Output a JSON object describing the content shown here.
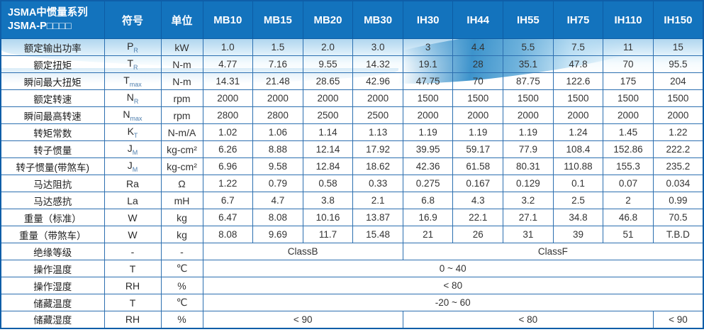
{
  "colors": {
    "header_bg": "#1373bd",
    "grid_border": "#2c6fb0",
    "outer_border": "#0f5ea8",
    "header_text": "#ffffff",
    "body_text": "#333333",
    "wave_light": "#acd4ee",
    "wave_dark": "#348ec9"
  },
  "table": {
    "header": {
      "series_title_line1": "JSMA中惯量系列",
      "series_title_line2": "JSMA-P□□□□",
      "symbol_col": "符号",
      "unit_col": "单位",
      "models": [
        "MB10",
        "MB15",
        "MB20",
        "MB30",
        "IH30",
        "IH44",
        "IH55",
        "IH75",
        "IH110",
        "IH150"
      ]
    },
    "rows": [
      {
        "label": "额定输出功率",
        "symbol": "P",
        "sub": "R",
        "unit": "kW",
        "cells": [
          "1.0",
          "1.5",
          "2.0",
          "3.0",
          "3",
          "4.4",
          "5.5",
          "7.5",
          "11",
          "15"
        ]
      },
      {
        "label": "额定扭矩",
        "symbol": "T",
        "sub": "R",
        "unit": "N-m",
        "cells": [
          "4.77",
          "7.16",
          "9.55",
          "14.32",
          "19.1",
          "28",
          "35.1",
          "47.8",
          "70",
          "95.5"
        ]
      },
      {
        "label": "瞬间最大扭矩",
        "symbol": "T",
        "sub": "max",
        "unit": "N-m",
        "cells": [
          "14.31",
          "21.48",
          "28.65",
          "42.96",
          "47.75",
          "70",
          "87.75",
          "122.6",
          "175",
          "204"
        ]
      },
      {
        "label": "额定转速",
        "symbol": "N",
        "sub": "R",
        "unit": "rpm",
        "cells": [
          "2000",
          "2000",
          "2000",
          "2000",
          "1500",
          "1500",
          "1500",
          "1500",
          "1500",
          "1500"
        ]
      },
      {
        "label": "瞬间最高转速",
        "symbol": "N",
        "sub": "max",
        "unit": "rpm",
        "cells": [
          "2800",
          "2800",
          "2500",
          "2500",
          "2000",
          "2000",
          "2000",
          "2000",
          "2000",
          "2000"
        ]
      },
      {
        "label": "转矩常数",
        "symbol": "K",
        "sub": "T",
        "unit": "N-m/A",
        "cells": [
          "1.02",
          "1.06",
          "1.14",
          "1.13",
          "1.19",
          "1.19",
          "1.19",
          "1.24",
          "1.45",
          "1.22"
        ]
      },
      {
        "label": "转子惯量",
        "symbol": "J",
        "sub": "M",
        "unit": "kg-cm²",
        "cells": [
          "6.26",
          "8.88",
          "12.14",
          "17.92",
          "39.95",
          "59.17",
          "77.9",
          "108.4",
          "152.86",
          "222.2"
        ]
      },
      {
        "label": "转子惯量(带煞车)",
        "symbol": "J",
        "sub": "M",
        "unit": "kg-cm²",
        "cells": [
          "6.96",
          "9.58",
          "12.84",
          "18.62",
          "42.36",
          "61.58",
          "80.31",
          "110.88",
          "155.3",
          "235.2"
        ]
      },
      {
        "label": "马达阻抗",
        "symbol": "Ra",
        "sub": "",
        "unit": "Ω",
        "cells": [
          "1.22",
          "0.79",
          "0.58",
          "0.33",
          "0.275",
          "0.167",
          "0.129",
          "0.1",
          "0.07",
          "0.034"
        ]
      },
      {
        "label": "马达感抗",
        "symbol": "La",
        "sub": "",
        "unit": "mH",
        "cells": [
          "6.7",
          "4.7",
          "3.8",
          "2.1",
          "6.8",
          "4.3",
          "3.2",
          "2.5",
          "2",
          "0.99"
        ]
      },
      {
        "label": "重量（标准）",
        "symbol": "W",
        "sub": "",
        "unit": "kg",
        "cells": [
          "6.47",
          "8.08",
          "10.16",
          "13.87",
          "16.9",
          "22.1",
          "27.1",
          "34.8",
          "46.8",
          "70.5"
        ]
      },
      {
        "label": "重量（带煞车）",
        "symbol": "W",
        "sub": "",
        "unit": "kg",
        "cells": [
          "8.08",
          "9.69",
          "11.7",
          "15.48",
          "21",
          "26",
          "31",
          "39",
          "51",
          "T.B.D"
        ]
      },
      {
        "label": "绝缘等级",
        "symbol": "-",
        "sub": "",
        "unit": "-",
        "cells": [
          {
            "t": "ClassB",
            "span": 4
          },
          {
            "t": "ClassF",
            "span": 6
          }
        ]
      },
      {
        "label": "操作温度",
        "symbol": "T",
        "sub": "",
        "unit": "℃",
        "cells": [
          {
            "t": "0 ~ 40",
            "span": 10
          }
        ]
      },
      {
        "label": "操作湿度",
        "symbol": "RH",
        "sub": "",
        "unit": "%",
        "cells": [
          {
            "t": "< 80",
            "span": 10
          }
        ]
      },
      {
        "label": "储藏温度",
        "symbol": "T",
        "sub": "",
        "unit": "℃",
        "cells": [
          {
            "t": "-20 ~ 60",
            "span": 10
          }
        ]
      },
      {
        "label": "储藏湿度",
        "symbol": "RH",
        "sub": "",
        "unit": "%",
        "cells": [
          {
            "t": "< 90",
            "span": 4
          },
          {
            "t": "< 80",
            "span": 5
          },
          {
            "t": "< 90",
            "span": 1
          }
        ]
      }
    ]
  }
}
